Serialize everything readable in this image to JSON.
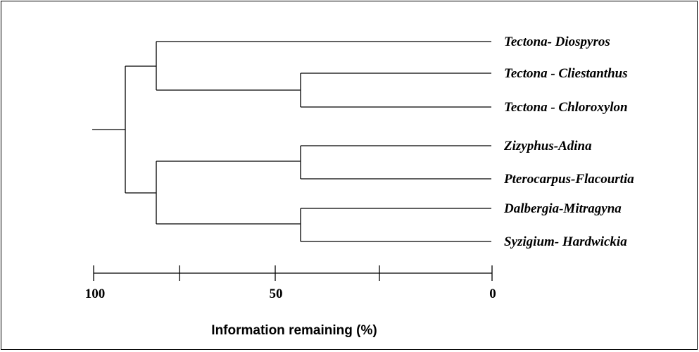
{
  "axis": {
    "label": "Information remaining (%)",
    "ticks": [
      "100",
      "50",
      "0"
    ]
  },
  "leaves": [
    "Tectona- Diospyros",
    "Tectona - Cliestanthus",
    "Tectona - Chloroxylon",
    "Zizyphus-Adina",
    "Pterocarpus-Flacourtia",
    "Dalbergia-Mitragyna",
    "Syzigium- Hardwickia"
  ]
}
